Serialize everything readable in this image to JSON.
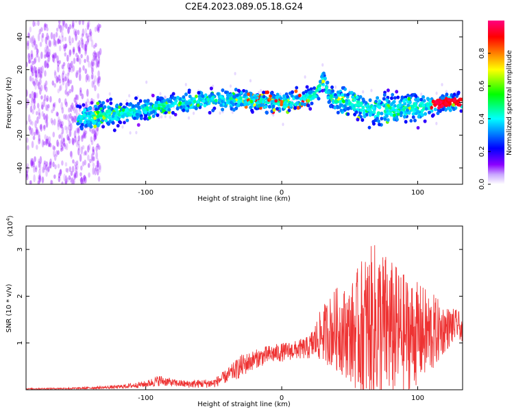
{
  "title": "C2E4.2023.089.05.18.G24",
  "chart_data": [
    {
      "type": "heatmap",
      "title": "C2E4.2023.089.05.18.G24",
      "xlabel": "Height of straight line (km)",
      "ylabel": "Frequency (Hz)",
      "xlim": [
        -188,
        133
      ],
      "ylim": [
        -50,
        50
      ],
      "xticks": [
        -100,
        0,
        100
      ],
      "yticks": [
        -40,
        -20,
        0,
        20,
        40
      ],
      "colorbar": {
        "label": "Normalized spectral amplitude",
        "range": [
          0,
          1
        ],
        "ticks": [
          "0.0",
          "0.2",
          "0.4",
          "0.6",
          "0.8"
        ],
        "colormap": [
          "#ffffff",
          "#8b00ff",
          "#0000ff",
          "#00ffff",
          "#00ff00",
          "#ffff00",
          "#ff8000",
          "#ff0000",
          "#ff0080"
        ]
      },
      "ridge": {
        "x": [
          -140,
          -120,
          -100,
          -80,
          -60,
          -40,
          -20,
          0,
          10,
          20,
          25,
          30,
          35,
          40,
          50,
          60,
          70,
          80,
          90,
          100,
          110,
          120,
          133
        ],
        "y": [
          -9,
          -7,
          -4,
          -1,
          1,
          2,
          1,
          0,
          1,
          3,
          6,
          14,
          5,
          1,
          0,
          -2,
          -5,
          -4,
          -3,
          -3,
          -2,
          0,
          0
        ]
      }
    },
    {
      "type": "line",
      "xlabel": "Height of straight line (km)",
      "ylabel": "SNR (10 * v/v)",
      "yscale_label": "(x10",
      "yscale_exp": "4",
      "xlim": [
        -188,
        133
      ],
      "ylim": [
        0,
        3.5
      ],
      "xticks": [
        -100,
        0,
        100
      ],
      "yticks": [
        1,
        2,
        3
      ],
      "color": "#ee3333",
      "envelope": {
        "x": [
          -188,
          -150,
          -120,
          -100,
          -90,
          -80,
          -70,
          -50,
          -40,
          -30,
          -20,
          -10,
          0,
          10,
          20,
          30,
          40,
          50,
          60,
          70,
          80,
          90,
          100,
          110,
          120,
          130,
          133
        ],
        "mean": [
          0.02,
          0.03,
          0.06,
          0.12,
          0.2,
          0.15,
          0.12,
          0.14,
          0.3,
          0.5,
          0.65,
          0.75,
          0.8,
          0.85,
          0.9,
          1.2,
          1.3,
          1.2,
          1.3,
          1.4,
          1.3,
          1.2,
          1.2,
          1.2,
          1.3,
          1.4,
          1.2
        ],
        "amp": [
          0.01,
          0.02,
          0.04,
          0.07,
          0.12,
          0.08,
          0.08,
          0.1,
          0.15,
          0.25,
          0.2,
          0.2,
          0.2,
          0.2,
          0.25,
          0.6,
          0.9,
          1.0,
          1.6,
          1.8,
          1.5,
          1.3,
          1.1,
          0.9,
          0.5,
          0.3,
          0.2
        ]
      }
    }
  ]
}
